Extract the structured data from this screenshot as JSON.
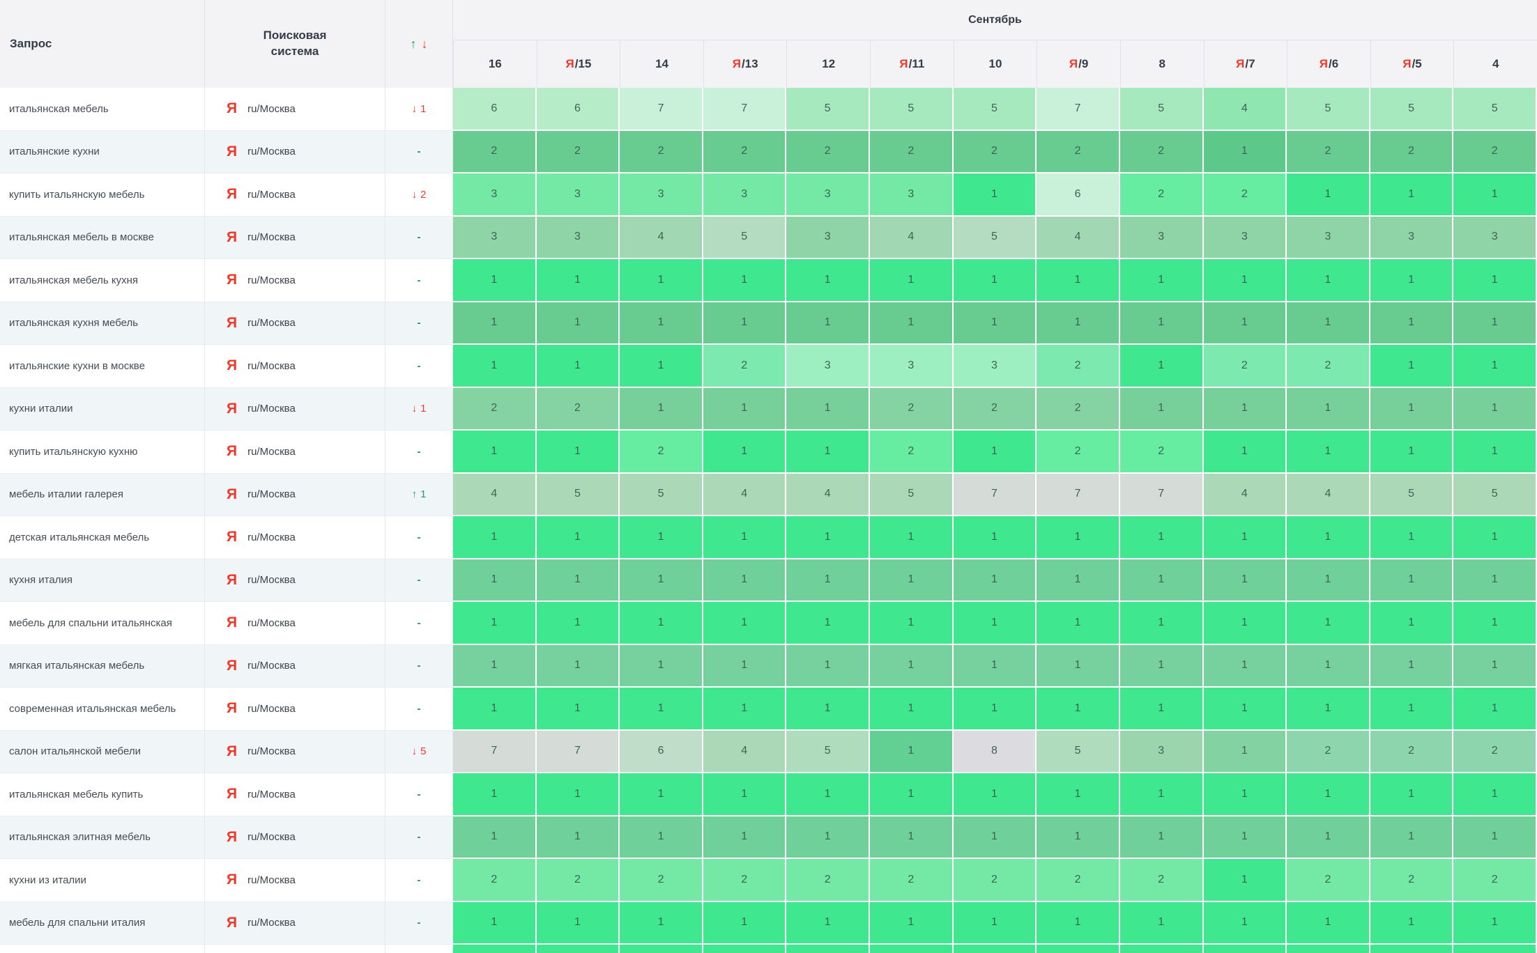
{
  "header": {
    "query_col": "Запрос",
    "engine_col": "Поисковая система",
    "sort_up": "↑",
    "sort_down": "↓",
    "month": "Сентябрь",
    "date_columns": [
      {
        "icon": "",
        "label": "16"
      },
      {
        "icon": "Я",
        "label": "/15"
      },
      {
        "icon": "",
        "label": "14"
      },
      {
        "icon": "Я",
        "label": "/13"
      },
      {
        "icon": "",
        "label": "12"
      },
      {
        "icon": "Я",
        "label": "/11"
      },
      {
        "icon": "",
        "label": "10"
      },
      {
        "icon": "Я",
        "label": "/9"
      },
      {
        "icon": "",
        "label": "8"
      },
      {
        "icon": "Я",
        "label": "/7"
      },
      {
        "icon": "Я",
        "label": "/6"
      },
      {
        "icon": "Я",
        "label": "/5"
      },
      {
        "icon": "",
        "label": "4"
      }
    ]
  },
  "engine": {
    "icon": "Я",
    "region": "ru/Москва"
  },
  "colors": {
    "yandex_red": "#ef3828",
    "up_green": "#1fa65a",
    "down_red": "#f0392b",
    "dash_green": "#2e8d52"
  },
  "palette": {
    "A": "#3fe88f",
    "L": "#67eda1",
    "J": "#73e9a5",
    "J2": "#7ceaae",
    "K": "#9defc2",
    "G": "#b6ecc8",
    "H": "#c9f0d8",
    "I": "#a6e9bf",
    "I4": "#90e6b1",
    "B": "#68cb90",
    "B1": "#5cc88a",
    "C": "#6fd099",
    "C2": "#76d19e",
    "D8": "#85d2a3",
    "D8b": "#77cf99",
    "R4a": "#8ed4a7",
    "R4b": "#a1d8b3",
    "R4c": "#b4dcc1",
    "E": "#abd9b8",
    "E5": "#b0dcbe",
    "F": "#d5dcd7",
    "F6": "#c0ddc9",
    "F8": "#dcdce0",
    "M1": "#62cf93",
    "M2": "#82d2a2",
    "M3": "#9bd5ae",
    "M4": "#8dd5ac"
  },
  "rows": [
    {
      "query": "итальянская мебель",
      "change": {
        "dir": "down",
        "value": "1"
      },
      "cells": [
        [
          "6",
          "G"
        ],
        [
          "6",
          "G"
        ],
        [
          "7",
          "H"
        ],
        [
          "7",
          "H"
        ],
        [
          "5",
          "I"
        ],
        [
          "5",
          "I"
        ],
        [
          "5",
          "I"
        ],
        [
          "7",
          "H"
        ],
        [
          "5",
          "I"
        ],
        [
          "4",
          "I4"
        ],
        [
          "5",
          "I"
        ],
        [
          "5",
          "I"
        ],
        [
          "5",
          "I"
        ]
      ]
    },
    {
      "query": "итальянские кухни",
      "change": {
        "dir": "none",
        "value": "-"
      },
      "cells": [
        [
          "2",
          "B"
        ],
        [
          "2",
          "B"
        ],
        [
          "2",
          "B"
        ],
        [
          "2",
          "B"
        ],
        [
          "2",
          "B"
        ],
        [
          "2",
          "B"
        ],
        [
          "2",
          "B"
        ],
        [
          "2",
          "B"
        ],
        [
          "2",
          "B"
        ],
        [
          "1",
          "B1"
        ],
        [
          "2",
          "B"
        ],
        [
          "2",
          "B"
        ],
        [
          "2",
          "B"
        ]
      ]
    },
    {
      "query": "купить итальянскую мебель",
      "change": {
        "dir": "down",
        "value": "2"
      },
      "cells": [
        [
          "3",
          "J"
        ],
        [
          "3",
          "J"
        ],
        [
          "3",
          "J"
        ],
        [
          "3",
          "J"
        ],
        [
          "3",
          "J"
        ],
        [
          "3",
          "J"
        ],
        [
          "1",
          "A"
        ],
        [
          "6",
          "H"
        ],
        [
          "2",
          "L"
        ],
        [
          "2",
          "L"
        ],
        [
          "1",
          "A"
        ],
        [
          "1",
          "A"
        ],
        [
          "1",
          "A"
        ]
      ]
    },
    {
      "query": "итальянская мебель в москве",
      "change": {
        "dir": "none",
        "value": "-"
      },
      "cells": [
        [
          "3",
          "R4a"
        ],
        [
          "3",
          "R4a"
        ],
        [
          "4",
          "R4b"
        ],
        [
          "5",
          "R4c"
        ],
        [
          "3",
          "R4a"
        ],
        [
          "4",
          "R4b"
        ],
        [
          "5",
          "R4c"
        ],
        [
          "4",
          "R4b"
        ],
        [
          "3",
          "R4a"
        ],
        [
          "3",
          "R4a"
        ],
        [
          "3",
          "R4a"
        ],
        [
          "3",
          "R4a"
        ],
        [
          "3",
          "R4a"
        ]
      ]
    },
    {
      "query": "итальянская мебель кухня",
      "change": {
        "dir": "none",
        "value": "-"
      },
      "cells": [
        [
          "1",
          "A"
        ],
        [
          "1",
          "A"
        ],
        [
          "1",
          "A"
        ],
        [
          "1",
          "A"
        ],
        [
          "1",
          "A"
        ],
        [
          "1",
          "A"
        ],
        [
          "1",
          "A"
        ],
        [
          "1",
          "A"
        ],
        [
          "1",
          "A"
        ],
        [
          "1",
          "A"
        ],
        [
          "1",
          "A"
        ],
        [
          "1",
          "A"
        ],
        [
          "1",
          "A"
        ]
      ]
    },
    {
      "query": "итальянская кухня мебель",
      "change": {
        "dir": "none",
        "value": "-"
      },
      "cells": [
        [
          "1",
          "B"
        ],
        [
          "1",
          "B"
        ],
        [
          "1",
          "B"
        ],
        [
          "1",
          "B"
        ],
        [
          "1",
          "B"
        ],
        [
          "1",
          "B"
        ],
        [
          "1",
          "B"
        ],
        [
          "1",
          "B"
        ],
        [
          "1",
          "B"
        ],
        [
          "1",
          "B"
        ],
        [
          "1",
          "B"
        ],
        [
          "1",
          "B"
        ],
        [
          "1",
          "B"
        ]
      ]
    },
    {
      "query": "итальянские кухни в москве",
      "change": {
        "dir": "none",
        "value": "-"
      },
      "cells": [
        [
          "1",
          "A"
        ],
        [
          "1",
          "A"
        ],
        [
          "1",
          "A"
        ],
        [
          "2",
          "J2"
        ],
        [
          "3",
          "K"
        ],
        [
          "3",
          "K"
        ],
        [
          "3",
          "K"
        ],
        [
          "2",
          "J2"
        ],
        [
          "1",
          "A"
        ],
        [
          "2",
          "J2"
        ],
        [
          "2",
          "J2"
        ],
        [
          "1",
          "A"
        ],
        [
          "1",
          "A"
        ]
      ]
    },
    {
      "query": "кухни италии",
      "change": {
        "dir": "down",
        "value": "1"
      },
      "cells": [
        [
          "2",
          "D8"
        ],
        [
          "2",
          "D8"
        ],
        [
          "1",
          "D8b"
        ],
        [
          "1",
          "D8b"
        ],
        [
          "1",
          "D8b"
        ],
        [
          "2",
          "D8"
        ],
        [
          "2",
          "D8"
        ],
        [
          "2",
          "D8"
        ],
        [
          "1",
          "D8b"
        ],
        [
          "1",
          "D8b"
        ],
        [
          "1",
          "D8b"
        ],
        [
          "1",
          "D8b"
        ],
        [
          "1",
          "D8b"
        ]
      ]
    },
    {
      "query": "купить итальянскую кухню",
      "change": {
        "dir": "none",
        "value": "-"
      },
      "cells": [
        [
          "1",
          "A"
        ],
        [
          "1",
          "A"
        ],
        [
          "2",
          "L"
        ],
        [
          "1",
          "A"
        ],
        [
          "1",
          "A"
        ],
        [
          "2",
          "L"
        ],
        [
          "1",
          "A"
        ],
        [
          "2",
          "L"
        ],
        [
          "2",
          "L"
        ],
        [
          "1",
          "A"
        ],
        [
          "1",
          "A"
        ],
        [
          "1",
          "A"
        ],
        [
          "1",
          "A"
        ]
      ]
    },
    {
      "query": "мебель италии галерея",
      "change": {
        "dir": "up",
        "value": "1"
      },
      "cells": [
        [
          "4",
          "E"
        ],
        [
          "5",
          "E"
        ],
        [
          "5",
          "E"
        ],
        [
          "4",
          "E"
        ],
        [
          "4",
          "E"
        ],
        [
          "5",
          "E"
        ],
        [
          "7",
          "F"
        ],
        [
          "7",
          "F"
        ],
        [
          "7",
          "F"
        ],
        [
          "4",
          "E"
        ],
        [
          "4",
          "E"
        ],
        [
          "5",
          "E"
        ],
        [
          "5",
          "E"
        ]
      ]
    },
    {
      "query": "детская итальянская мебель",
      "change": {
        "dir": "none",
        "value": "-"
      },
      "cells": [
        [
          "1",
          "A"
        ],
        [
          "1",
          "A"
        ],
        [
          "1",
          "A"
        ],
        [
          "1",
          "A"
        ],
        [
          "1",
          "A"
        ],
        [
          "1",
          "A"
        ],
        [
          "1",
          "A"
        ],
        [
          "1",
          "A"
        ],
        [
          "1",
          "A"
        ],
        [
          "1",
          "A"
        ],
        [
          "1",
          "A"
        ],
        [
          "1",
          "A"
        ],
        [
          "1",
          "A"
        ]
      ]
    },
    {
      "query": "кухня италия",
      "change": {
        "dir": "none",
        "value": "-"
      },
      "cells": [
        [
          "1",
          "C"
        ],
        [
          "1",
          "C"
        ],
        [
          "1",
          "C"
        ],
        [
          "1",
          "C"
        ],
        [
          "1",
          "C"
        ],
        [
          "1",
          "C"
        ],
        [
          "1",
          "C"
        ],
        [
          "1",
          "C"
        ],
        [
          "1",
          "C"
        ],
        [
          "1",
          "C"
        ],
        [
          "1",
          "C"
        ],
        [
          "1",
          "C"
        ],
        [
          "1",
          "C"
        ]
      ]
    },
    {
      "query": "мебель для спальни итальянская",
      "change": {
        "dir": "none",
        "value": "-"
      },
      "cells": [
        [
          "1",
          "A"
        ],
        [
          "1",
          "A"
        ],
        [
          "1",
          "A"
        ],
        [
          "1",
          "A"
        ],
        [
          "1",
          "A"
        ],
        [
          "1",
          "A"
        ],
        [
          "1",
          "A"
        ],
        [
          "1",
          "A"
        ],
        [
          "1",
          "A"
        ],
        [
          "1",
          "A"
        ],
        [
          "1",
          "A"
        ],
        [
          "1",
          "A"
        ],
        [
          "1",
          "A"
        ]
      ]
    },
    {
      "query": "мягкая итальянская мебель",
      "change": {
        "dir": "none",
        "value": "-"
      },
      "cells": [
        [
          "1",
          "C2"
        ],
        [
          "1",
          "C2"
        ],
        [
          "1",
          "C2"
        ],
        [
          "1",
          "C2"
        ],
        [
          "1",
          "C2"
        ],
        [
          "1",
          "C2"
        ],
        [
          "1",
          "C2"
        ],
        [
          "1",
          "C2"
        ],
        [
          "1",
          "C2"
        ],
        [
          "1",
          "C2"
        ],
        [
          "1",
          "C2"
        ],
        [
          "1",
          "C2"
        ],
        [
          "1",
          "C2"
        ]
      ]
    },
    {
      "query": "современная итальянская мебель",
      "change": {
        "dir": "none",
        "value": "-"
      },
      "cells": [
        [
          "1",
          "A"
        ],
        [
          "1",
          "A"
        ],
        [
          "1",
          "A"
        ],
        [
          "1",
          "A"
        ],
        [
          "1",
          "A"
        ],
        [
          "1",
          "A"
        ],
        [
          "1",
          "A"
        ],
        [
          "1",
          "A"
        ],
        [
          "1",
          "A"
        ],
        [
          "1",
          "A"
        ],
        [
          "1",
          "A"
        ],
        [
          "1",
          "A"
        ],
        [
          "1",
          "A"
        ]
      ]
    },
    {
      "query": "салон итальянской мебели",
      "change": {
        "dir": "down",
        "value": "5"
      },
      "cells": [
        [
          "7",
          "F"
        ],
        [
          "7",
          "F"
        ],
        [
          "6",
          "F6"
        ],
        [
          "4",
          "E"
        ],
        [
          "5",
          "E5"
        ],
        [
          "1",
          "M1"
        ],
        [
          "8",
          "F8"
        ],
        [
          "5",
          "E5"
        ],
        [
          "3",
          "M3"
        ],
        [
          "1",
          "M2"
        ],
        [
          "2",
          "M4"
        ],
        [
          "2",
          "M4"
        ],
        [
          "2",
          "M4"
        ]
      ]
    },
    {
      "query": "итальянская мебель купить",
      "change": {
        "dir": "none",
        "value": "-"
      },
      "cells": [
        [
          "1",
          "A"
        ],
        [
          "1",
          "A"
        ],
        [
          "1",
          "A"
        ],
        [
          "1",
          "A"
        ],
        [
          "1",
          "A"
        ],
        [
          "1",
          "A"
        ],
        [
          "1",
          "A"
        ],
        [
          "1",
          "A"
        ],
        [
          "1",
          "A"
        ],
        [
          "1",
          "A"
        ],
        [
          "1",
          "A"
        ],
        [
          "1",
          "A"
        ],
        [
          "1",
          "A"
        ]
      ]
    },
    {
      "query": "итальянская элитная мебель",
      "change": {
        "dir": "none",
        "value": "-"
      },
      "cells": [
        [
          "1",
          "C"
        ],
        [
          "1",
          "C"
        ],
        [
          "1",
          "C"
        ],
        [
          "1",
          "C"
        ],
        [
          "1",
          "C"
        ],
        [
          "1",
          "C"
        ],
        [
          "1",
          "C"
        ],
        [
          "1",
          "C"
        ],
        [
          "1",
          "C"
        ],
        [
          "1",
          "C"
        ],
        [
          "1",
          "C"
        ],
        [
          "1",
          "C"
        ],
        [
          "1",
          "C"
        ]
      ]
    },
    {
      "query": "кухни из италии",
      "change": {
        "dir": "none",
        "value": "-"
      },
      "cells": [
        [
          "2",
          "J"
        ],
        [
          "2",
          "J"
        ],
        [
          "2",
          "J"
        ],
        [
          "2",
          "J"
        ],
        [
          "2",
          "J"
        ],
        [
          "2",
          "J"
        ],
        [
          "2",
          "J"
        ],
        [
          "2",
          "J"
        ],
        [
          "2",
          "J"
        ],
        [
          "1",
          "A"
        ],
        [
          "2",
          "J"
        ],
        [
          "2",
          "J"
        ],
        [
          "2",
          "J"
        ]
      ]
    },
    {
      "query": "мебель для спальни италия",
      "change": {
        "dir": "none",
        "value": "-"
      },
      "cells": [
        [
          "1",
          "A"
        ],
        [
          "1",
          "A"
        ],
        [
          "1",
          "A"
        ],
        [
          "1",
          "A"
        ],
        [
          "1",
          "A"
        ],
        [
          "1",
          "A"
        ],
        [
          "1",
          "A"
        ],
        [
          "1",
          "A"
        ],
        [
          "1",
          "A"
        ],
        [
          "1",
          "A"
        ],
        [
          "1",
          "A"
        ],
        [
          "1",
          "A"
        ],
        [
          "1",
          "A"
        ]
      ]
    }
  ],
  "partial_row": {
    "cell_color": "A"
  }
}
